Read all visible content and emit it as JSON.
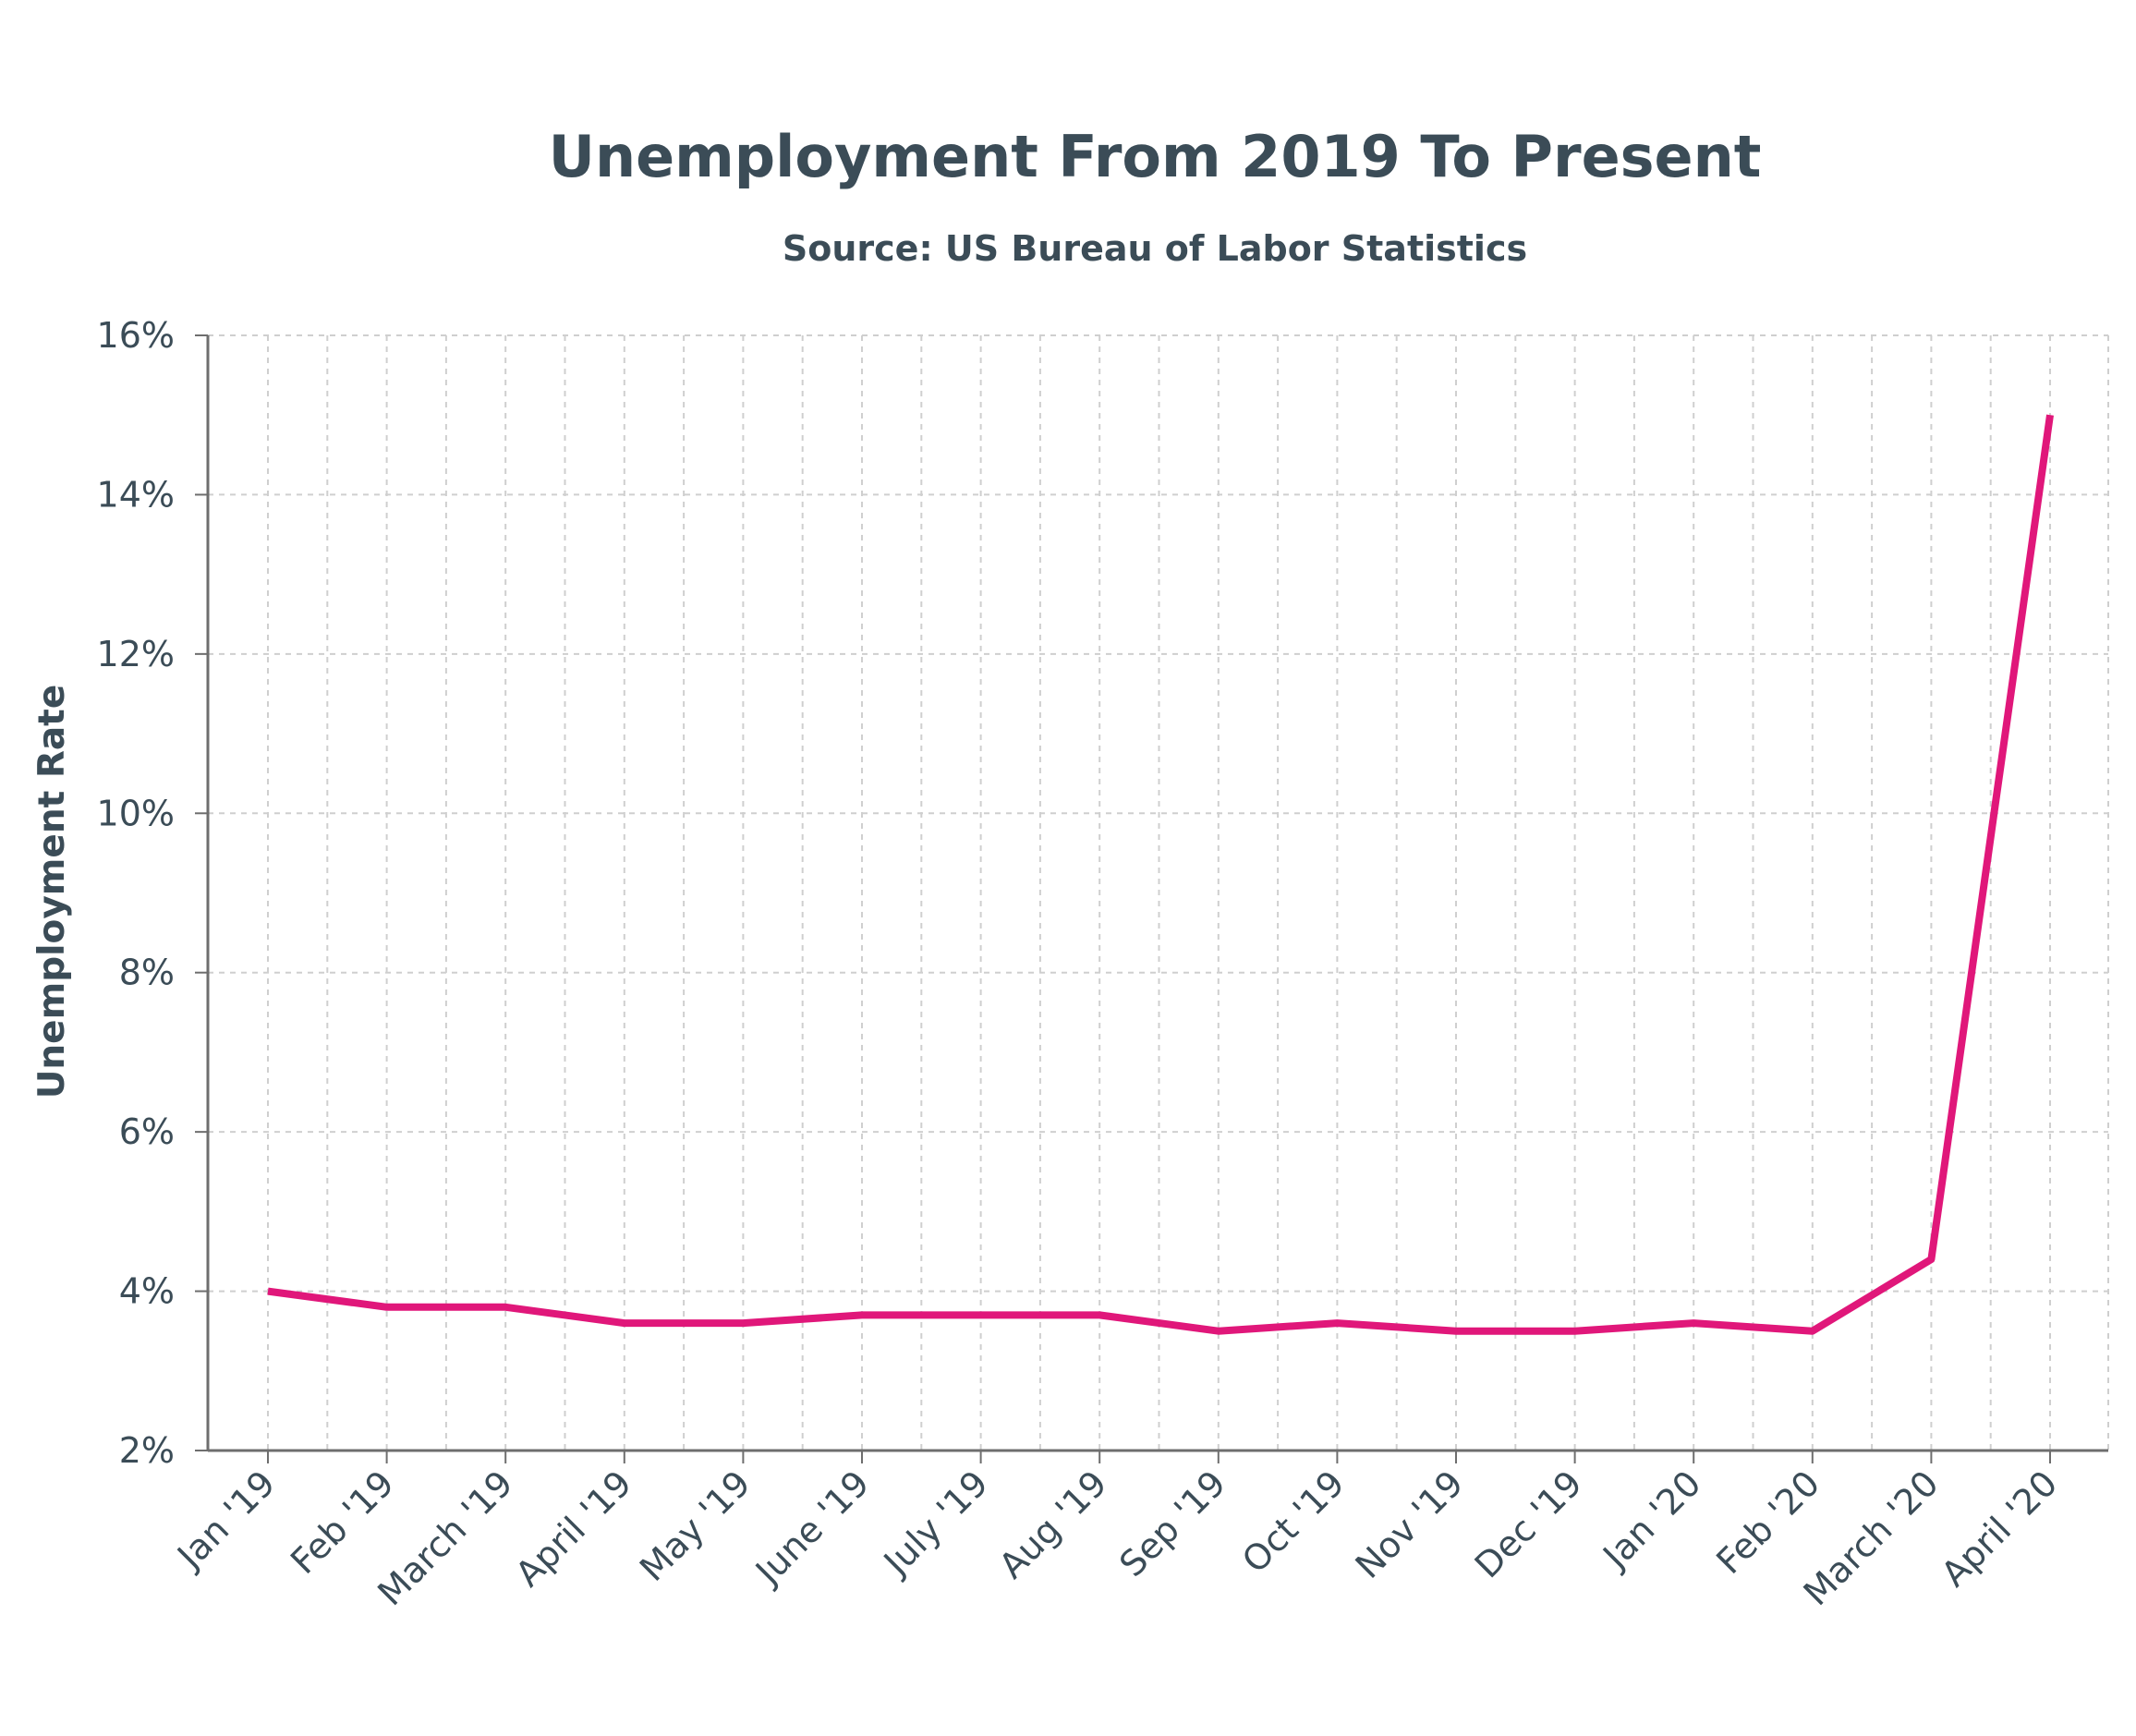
{
  "chart_data": {
    "type": "line",
    "title": "Unemployment From 2019 To Present",
    "subtitle": "Source: US Bureau of Labor Statistics",
    "xlabel": "",
    "ylabel": "Unemployment Rate",
    "categories": [
      "Jan '19",
      "Feb '19",
      "March '19",
      "April '19",
      "May '19",
      "June '19",
      "July '19",
      "Aug '19",
      "Sep '19",
      "Oct '19",
      "Nov '19",
      "Dec '19",
      "Jan '20",
      "Feb '20",
      "March '20",
      "April '20"
    ],
    "series": [
      {
        "values": [
          4.0,
          3.8,
          3.8,
          3.6,
          3.6,
          3.7,
          3.7,
          3.7,
          3.5,
          3.6,
          3.5,
          3.5,
          3.6,
          3.5,
          4.4,
          15.0
        ],
        "color": "#e0177a"
      }
    ],
    "ylim": [
      2,
      16
    ],
    "yticks": [
      2,
      4,
      6,
      8,
      10,
      12,
      14,
      16
    ],
    "ytick_suffix": "%",
    "grid": true,
    "grid_style": "dashed",
    "legend": "none",
    "colors": {
      "text": "#3b4c57",
      "axis": "#6e6e6e",
      "grid": "#cfcfcf"
    }
  }
}
